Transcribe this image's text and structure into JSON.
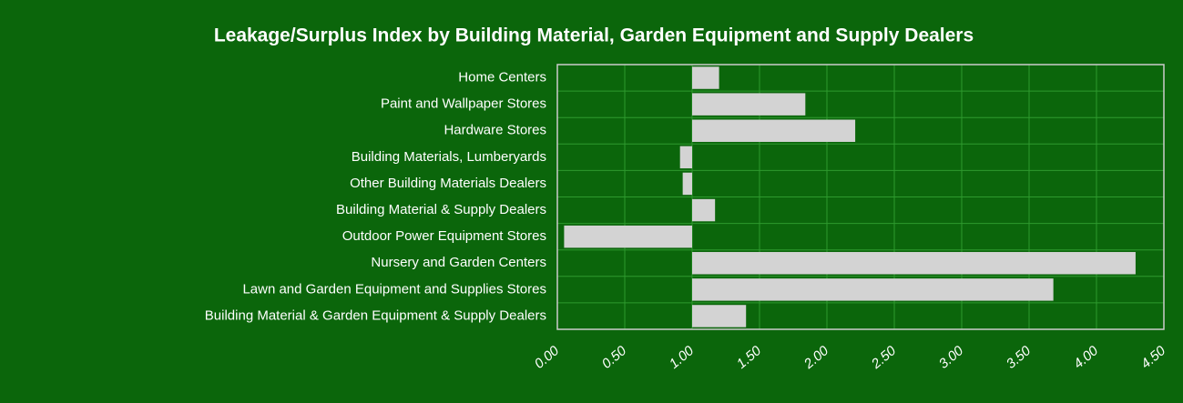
{
  "chart_data": {
    "type": "hbar",
    "title": "Leakage/Surplus Index by Building Material, Garden Equipment and Supply Dealers",
    "categories": [
      "Home Centers",
      "Paint and Wallpaper Stores",
      "Hardware Stores",
      "Building Materials, Lumberyards",
      "Other Building Materials Dealers",
      "Building Material & Supply Dealers",
      "Outdoor Power Equipment Stores",
      "Nursery and Garden Centers",
      "Lawn and Garden Equipment and Supplies Stores",
      "Building Material & Garden Equipment & Supply Dealers"
    ],
    "values": [
      1.2,
      1.84,
      2.21,
      0.91,
      0.93,
      1.17,
      0.05,
      4.29,
      3.68,
      1.4
    ],
    "baseline": 1,
    "color": "#d3d3d3",
    "xlim": [
      0,
      4.5
    ],
    "xticks": [
      {
        "value": 0,
        "label": "0.00"
      },
      {
        "value": 0.5,
        "label": "0.50"
      },
      {
        "value": 1,
        "label": "1.00"
      },
      {
        "value": 1.5,
        "label": "1.50"
      },
      {
        "value": 2,
        "label": "2.00"
      },
      {
        "value": 2.5,
        "label": "2.50"
      },
      {
        "value": 3,
        "label": "3.00"
      },
      {
        "value": 3.5,
        "label": "3.50"
      },
      {
        "value": 4,
        "label": "4.00"
      },
      {
        "value": 4.5,
        "label": "4.50"
      }
    ],
    "grid": true
  }
}
